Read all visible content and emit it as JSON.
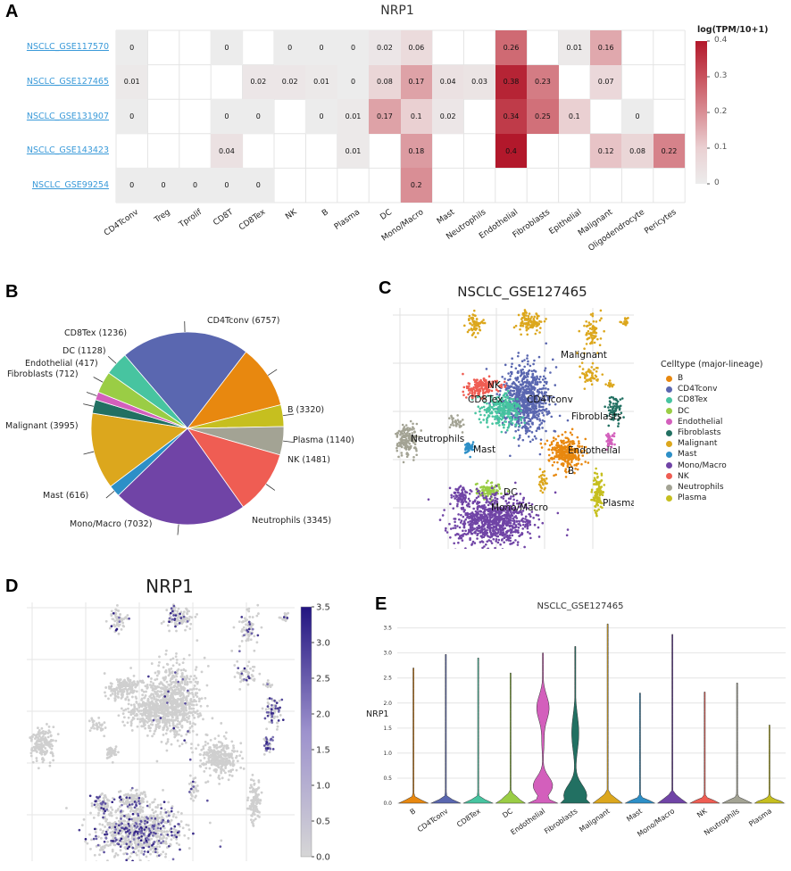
{
  "panel_labels": {
    "a": "A",
    "b": "B",
    "c": "C",
    "d": "D",
    "e": "E"
  },
  "chart_data": [
    {
      "type": "heatmap",
      "id": "A",
      "title": "NRP1",
      "rows": [
        "NSCLC_GSE117570",
        "NSCLC_GSE127465",
        "NSCLC_GSE131907",
        "NSCLC_GSE143423",
        "NSCLC_GSE99254"
      ],
      "columns": [
        "CD4Tconv",
        "Treg",
        "Tprolif",
        "CD8T",
        "CD8Tex",
        "NK",
        "B",
        "Plasma",
        "DC",
        "Mono/Macro",
        "Mast",
        "Neutrophils",
        "Endothelial",
        "Fibroblasts",
        "Epithelial",
        "Malignant",
        "Oligodendrocyte",
        "Pericytes"
      ],
      "values": [
        [
          0,
          null,
          null,
          0,
          null,
          0,
          0,
          0,
          0.02,
          0.06,
          null,
          null,
          0.26,
          null,
          0.01,
          0.16,
          null,
          null
        ],
        [
          0.01,
          null,
          null,
          null,
          0.02,
          0.02,
          0.01,
          0,
          0.08,
          0.17,
          0.04,
          0.03,
          0.38,
          0.23,
          null,
          0.07,
          null,
          null
        ],
        [
          0,
          null,
          null,
          0,
          0,
          null,
          0,
          0.01,
          0.17,
          0.1,
          0.02,
          null,
          0.34,
          0.25,
          0.1,
          null,
          0,
          null
        ],
        [
          null,
          null,
          null,
          0.04,
          null,
          null,
          null,
          0.01,
          null,
          0.18,
          null,
          null,
          0.4,
          null,
          null,
          0.12,
          0.08,
          0.22
        ],
        [
          0,
          0,
          0,
          0,
          0,
          null,
          null,
          null,
          null,
          0.2,
          null,
          null,
          null,
          null,
          null,
          null,
          null,
          null
        ]
      ],
      "colorbar": {
        "label": "log(TPM/10+1)",
        "range": [
          0,
          0.4
        ],
        "ticks": [
          "0",
          "0.1",
          "0.2",
          "0.3",
          "0.4"
        ],
        "low_color": "#ececec",
        "high_color": "#b2182b"
      }
    },
    {
      "type": "pie",
      "id": "B",
      "slices": [
        {
          "label": "CD4Tconv (6757)",
          "value": 6757,
          "color": "#5a67b0"
        },
        {
          "label": "B (3320)",
          "value": 3320,
          "color": "#e8880f"
        },
        {
          "label": "Plasma (1140)",
          "value": 1140,
          "color": "#c6bf1f"
        },
        {
          "label": "NK (1481)",
          "value": 1481,
          "color": "#a3a394"
        },
        {
          "label": "Neutrophils (3345)",
          "value": 3345,
          "color": "#ef5d53"
        },
        {
          "label": "Mono/Macro (7032)",
          "value": 7032,
          "color": "#7044a6"
        },
        {
          "label": "Mast (616)",
          "value": 616,
          "color": "#2d8fc7"
        },
        {
          "label": "Malignant (3995)",
          "value": 3995,
          "color": "#dca71d"
        },
        {
          "label": "Fibroblasts (712)",
          "value": 712,
          "color": "#227062"
        },
        {
          "label": "Endothelial (417)",
          "value": 417,
          "color": "#d35fbc"
        },
        {
          "label": "DC (1128)",
          "value": 1128,
          "color": "#9acd45"
        },
        {
          "label": "CD8Tex (1236)",
          "value": 1236,
          "color": "#47c4a0"
        }
      ]
    },
    {
      "type": "scatter",
      "id": "C",
      "title": "NSCLC_GSE127465",
      "legend_title": "Celltype (major-lineage)",
      "legend": [
        {
          "label": "B",
          "color": "#e8880f"
        },
        {
          "label": "CD4Tconv",
          "color": "#5a67b0"
        },
        {
          "label": "CD8Tex",
          "color": "#47c4a0"
        },
        {
          "label": "DC",
          "color": "#9acd45"
        },
        {
          "label": "Endothelial",
          "color": "#d35fbc"
        },
        {
          "label": "Fibroblasts",
          "color": "#227062"
        },
        {
          "label": "Malignant",
          "color": "#dca71d"
        },
        {
          "label": "Mast",
          "color": "#2d8fc7"
        },
        {
          "label": "Mono/Macro",
          "color": "#7044a6"
        },
        {
          "label": "NK",
          "color": "#ef5d53"
        },
        {
          "label": "Neutrophils",
          "color": "#a3a394"
        },
        {
          "label": "Plasma",
          "color": "#c6bf1f"
        }
      ],
      "annotations": [
        "Malignant",
        "NK",
        "CD8Tex",
        "CD4Tconv",
        "Fibroblasts",
        "Neutrophils",
        "Mast",
        "Endothelial",
        "B",
        "DC",
        "Mono/Macro",
        "Plasma"
      ]
    },
    {
      "type": "scatter",
      "id": "D",
      "title": "NRP1",
      "colorbar": {
        "range": [
          0,
          3.5
        ],
        "ticks": [
          "0.0",
          "0.5",
          "1.0",
          "1.5",
          "2.0",
          "2.5",
          "3.0",
          "3.5"
        ]
      }
    },
    {
      "type": "violin",
      "id": "E",
      "title": "NSCLC_GSE127465",
      "ylabel": "NRP1",
      "ylim": [
        0,
        3.6
      ],
      "yticks": [
        "0.0",
        "0.5",
        "1.0",
        "1.5",
        "2.0",
        "2.5",
        "3.0",
        "3.5"
      ],
      "categories": [
        "B",
        "CD4Tconv",
        "CD8Tex",
        "DC",
        "Endothelial",
        "Fibroblasts",
        "Malignant",
        "Mast",
        "Mono/Macro",
        "NK",
        "Neutrophils",
        "Plasma"
      ],
      "max_values": [
        2.7,
        2.97,
        2.9,
        2.6,
        3.0,
        3.13,
        3.58,
        2.2,
        3.37,
        2.22,
        2.4,
        1.56
      ],
      "colors": [
        "#e8880f",
        "#5a67b0",
        "#47c4a0",
        "#9acd45",
        "#d35fbc",
        "#227062",
        "#dca71d",
        "#2d8fc7",
        "#7044a6",
        "#ef5d53",
        "#a3a394",
        "#c6bf1f"
      ]
    }
  ]
}
